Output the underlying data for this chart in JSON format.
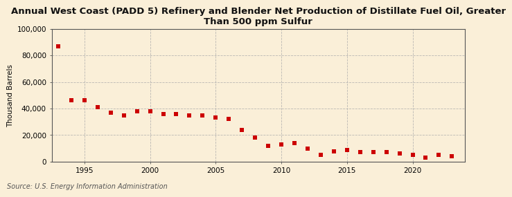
{
  "title": "Annual West Coast (PADD 5) Refinery and Blender Net Production of Distillate Fuel Oil, Greater\nThan 500 ppm Sulfur",
  "ylabel": "Thousand Barrels",
  "source": "Source: U.S. Energy Information Administration",
  "background_color": "#faefd8",
  "plot_bg_color": "#faefd8",
  "marker_color": "#cc0000",
  "years": [
    1993,
    1994,
    1995,
    1996,
    1997,
    1998,
    1999,
    2000,
    2001,
    2002,
    2003,
    2004,
    2005,
    2006,
    2007,
    2008,
    2009,
    2010,
    2011,
    2012,
    2013,
    2014,
    2015,
    2016,
    2017,
    2018,
    2019,
    2020,
    2021,
    2022,
    2023
  ],
  "values": [
    87000,
    46000,
    46000,
    41000,
    37000,
    35000,
    38000,
    38000,
    36000,
    36000,
    35000,
    35000,
    33000,
    32000,
    24000,
    18000,
    12000,
    13000,
    14000,
    10000,
    5000,
    8000,
    9000,
    7000,
    7000,
    7000,
    6000,
    5000,
    3000,
    5000,
    4000
  ],
  "ylim": [
    0,
    100000
  ],
  "yticks": [
    0,
    20000,
    40000,
    60000,
    80000,
    100000
  ],
  "xlim": [
    1992.5,
    2024
  ],
  "xticks": [
    1995,
    2000,
    2005,
    2010,
    2015,
    2020
  ],
  "title_fontsize": 9.5,
  "axis_fontsize": 7.5,
  "source_fontsize": 7
}
